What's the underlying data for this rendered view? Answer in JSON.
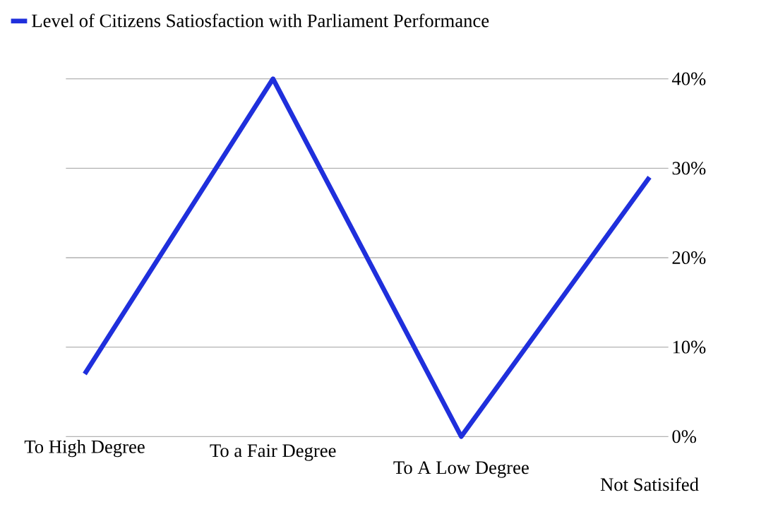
{
  "chart_data": {
    "type": "line",
    "categories": [
      "To High Degree",
      "To a Fair Degree",
      "To A Low Degree",
      "Not Satisifed"
    ],
    "series": [
      {
        "name": "Level of Citizens Satiosfaction with Parliament Performance",
        "color": "#1f2fdc",
        "values": [
          7,
          40,
          0,
          29
        ]
      }
    ],
    "ylim": [
      0,
      40
    ],
    "yticks": [
      {
        "value": 0,
        "label": "0%"
      },
      {
        "value": 10,
        "label": "10%"
      },
      {
        "value": 20,
        "label": "20%"
      },
      {
        "value": 30,
        "label": "30%"
      },
      {
        "value": 40,
        "label": "40%"
      }
    ],
    "grid": "y",
    "legend": "top left",
    "marker": "none",
    "line_style": "solid"
  }
}
